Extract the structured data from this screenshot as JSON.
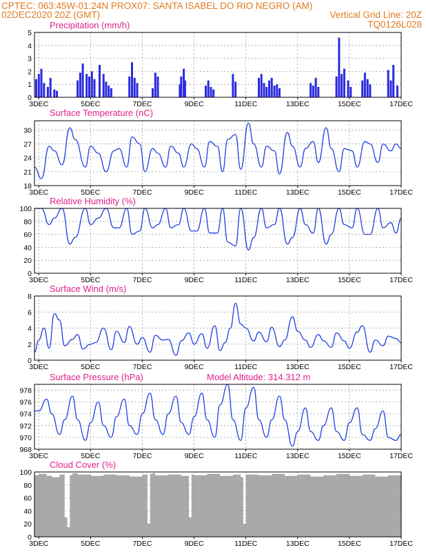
{
  "header": {
    "line1_left": "CPTEC:   063:45W-01:24N   PROX07: SANTA ISABEL DO RIO NEGRO (AM)",
    "line2_left": "02DEC2020 20Z (GMT)",
    "line2_right": "Vertical Grid Line: 20Z",
    "line3_right": "TQ0126L028",
    "model_altitude": "Model Altitude: 314.312 m"
  },
  "colors": {
    "header": "#e07a1f",
    "title": "#e0208a",
    "line": "#1f3fe0",
    "bars": "#2a2ae0",
    "cloud": "#a9a9a9",
    "wind": "#000000"
  },
  "chart_data": [
    {
      "id": "precip",
      "type": "bar",
      "title": "Precipitation (mm/h)",
      "x_tick_labels": [
        "3DEC",
        "5DEC",
        "7DEC",
        "9DEC",
        "11DEC",
        "13DEC",
        "15DEC",
        "17DEC"
      ],
      "x_range_days": [
        2.833,
        17.0
      ],
      "ylim": [
        0,
        5
      ],
      "y_ticks": [
        "0",
        "1",
        "2",
        "3",
        "4",
        "5"
      ],
      "x": [
        2.9,
        3.0,
        3.1,
        3.2,
        3.35,
        3.45,
        3.6,
        3.7,
        4.5,
        4.6,
        4.7,
        4.85,
        4.95,
        5.05,
        5.15,
        5.35,
        5.5,
        5.6,
        5.7,
        5.8,
        6.5,
        6.6,
        6.7,
        6.8,
        7.4,
        7.5,
        7.6,
        8.45,
        8.5,
        8.6,
        8.65,
        9.45,
        9.55,
        9.65,
        9.75,
        10.5,
        10.6,
        11.5,
        11.6,
        11.7,
        11.8,
        11.9,
        12.0,
        12.1,
        12.2,
        12.3,
        13.5,
        13.6,
        13.7,
        13.8,
        14.5,
        14.6,
        14.7,
        14.8,
        14.95,
        15.05,
        15.5,
        15.6,
        15.7,
        15.8,
        16.5,
        16.6,
        16.7,
        16.85
      ],
      "values": [
        1.4,
        1.8,
        2.2,
        1.1,
        0.8,
        1.5,
        0.6,
        0.5,
        1.3,
        1.9,
        2.6,
        1.8,
        1.6,
        2.0,
        1.4,
        2.5,
        1.8,
        1.2,
        0.9,
        0.7,
        1.6,
        2.7,
        1.5,
        1.1,
        0.7,
        1.9,
        1.6,
        1.0,
        1.6,
        2.2,
        1.3,
        0.9,
        1.3,
        0.8,
        0.6,
        1.8,
        1.2,
        1.5,
        1.8,
        1.1,
        0.8,
        1.3,
        1.5,
        0.9,
        1.0,
        0.7,
        1.1,
        0.9,
        1.5,
        0.8,
        1.6,
        4.6,
        1.8,
        2.2,
        1.3,
        0.8,
        1.3,
        1.9,
        1.4,
        1.0,
        2.1,
        1.3,
        2.5,
        0.9
      ]
    },
    {
      "id": "temp",
      "type": "line",
      "title": "Surface Temperature (nC)",
      "x_tick_labels": [
        "3DEC",
        "5DEC",
        "7DEC",
        "9DEC",
        "11DEC",
        "13DEC",
        "15DEC",
        "17DEC"
      ],
      "x_range_days": [
        2.833,
        17.0
      ],
      "ylim": [
        18,
        32
      ],
      "y_ticks": [
        "18",
        "21",
        "24",
        "27",
        "30"
      ],
      "x": [
        2.83,
        3.1,
        3.4,
        3.6,
        3.9,
        4.2,
        4.4,
        4.8,
        5.0,
        5.3,
        5.6,
        5.9,
        6.1,
        6.4,
        6.6,
        6.9,
        7.1,
        7.4,
        7.6,
        7.9,
        8.1,
        8.4,
        8.6,
        8.9,
        9.1,
        9.4,
        9.6,
        9.9,
        10.1,
        10.3,
        10.6,
        10.8,
        11.1,
        11.3,
        11.6,
        11.8,
        12.1,
        12.3,
        12.6,
        12.8,
        13.1,
        13.3,
        13.6,
        13.8,
        14.1,
        14.3,
        14.6,
        14.8,
        15.1,
        15.3,
        15.6,
        15.8,
        16.1,
        16.3,
        16.6,
        16.8,
        17.0
      ],
      "values": [
        22,
        19.5,
        26.5,
        25.5,
        22.5,
        30.5,
        28,
        22,
        26.5,
        25,
        21,
        25.5,
        26,
        22,
        28.5,
        27,
        21,
        26,
        25,
        22,
        26.5,
        25,
        22,
        27,
        26,
        22,
        27.5,
        26.5,
        21,
        28,
        29,
        21.5,
        31.5,
        27,
        22,
        26.5,
        25.5,
        20.5,
        29.5,
        26.5,
        22,
        26,
        27.5,
        23,
        30.5,
        26,
        21,
        26,
        25.5,
        22,
        27.5,
        27,
        23,
        27,
        25.5,
        27,
        26
      ]
    },
    {
      "id": "rh",
      "type": "line",
      "title": "Relative Humidity (%)",
      "x_tick_labels": [
        "3DEC",
        "5DEC",
        "7DEC",
        "9DEC",
        "11DEC",
        "13DEC",
        "15DEC",
        "17DEC"
      ],
      "x_range_days": [
        2.833,
        17.0
      ],
      "ylim": [
        0,
        100
      ],
      "y_ticks": [
        "0",
        "20",
        "40",
        "60",
        "80",
        "100"
      ],
      "x": [
        2.83,
        3.1,
        3.4,
        3.6,
        3.9,
        4.2,
        4.4,
        4.8,
        5.0,
        5.3,
        5.6,
        5.9,
        6.1,
        6.4,
        6.6,
        6.9,
        7.1,
        7.4,
        7.6,
        7.9,
        8.1,
        8.4,
        8.6,
        8.9,
        9.1,
        9.4,
        9.6,
        9.9,
        10.1,
        10.3,
        10.6,
        10.8,
        11.1,
        11.3,
        11.6,
        11.8,
        12.1,
        12.3,
        12.6,
        12.8,
        13.1,
        13.3,
        13.6,
        13.8,
        14.1,
        14.3,
        14.6,
        14.8,
        15.1,
        15.3,
        15.6,
        15.8,
        16.1,
        16.3,
        16.6,
        16.8,
        17.0
      ],
      "values": [
        100,
        100,
        75,
        85,
        100,
        45,
        55,
        100,
        75,
        85,
        100,
        70,
        70,
        100,
        60,
        65,
        100,
        70,
        75,
        100,
        70,
        75,
        100,
        65,
        65,
        100,
        62,
        62,
        100,
        48,
        42,
        100,
        36,
        55,
        100,
        70,
        75,
        100,
        45,
        55,
        100,
        75,
        62,
        100,
        45,
        60,
        100,
        75,
        70,
        100,
        60,
        60,
        100,
        70,
        78,
        62,
        85
      ]
    },
    {
      "id": "wind",
      "type": "line",
      "title": "Surface Wind (m/s)",
      "x_tick_labels": [
        "3DEC",
        "5DEC",
        "7DEC",
        "9DEC",
        "11DEC",
        "13DEC",
        "15DEC",
        "17DEC"
      ],
      "x_range_days": [
        2.833,
        17.0
      ],
      "ylim": [
        0,
        8
      ],
      "y_ticks": [
        "0",
        "2",
        "4",
        "6",
        "8"
      ],
      "x": [
        2.83,
        3.0,
        3.2,
        3.4,
        3.6,
        3.8,
        4.0,
        4.3,
        4.5,
        4.7,
        5.0,
        5.2,
        5.5,
        5.8,
        6.0,
        6.3,
        6.5,
        6.8,
        7.0,
        7.3,
        7.5,
        7.8,
        8.0,
        8.3,
        8.5,
        8.8,
        9.0,
        9.3,
        9.5,
        9.8,
        10.0,
        10.2,
        10.4,
        10.6,
        10.8,
        11.0,
        11.3,
        11.5,
        11.8,
        12.0,
        12.3,
        12.5,
        12.8,
        13.0,
        13.3,
        13.5,
        13.8,
        14.0,
        14.3,
        14.5,
        14.8,
        15.0,
        15.3,
        15.5,
        15.8,
        16.0,
        16.3,
        16.5,
        16.8,
        17.0
      ],
      "values": [
        1.0,
        2.5,
        4.0,
        1.5,
        5.8,
        5.0,
        1.8,
        2.6,
        3.2,
        1.4,
        2.0,
        2.2,
        4.0,
        1.3,
        3.6,
        2.2,
        4.2,
        2.0,
        2.8,
        1.0,
        3.1,
        2.5,
        2.6,
        0.6,
        2.4,
        3.4,
        2.0,
        3.3,
        1.5,
        4.3,
        1.2,
        2.2,
        4.0,
        7.1,
        4.5,
        4.0,
        2.4,
        3.5,
        2.3,
        4.1,
        1.7,
        2.5,
        5.4,
        3.6,
        2.5,
        1.6,
        3.2,
        2.4,
        1.6,
        3.4,
        2.4,
        1.5,
        3.5,
        4.3,
        1.0,
        2.5,
        1.8,
        3.0,
        2.7,
        2.2
      ]
    },
    {
      "id": "pressure",
      "type": "line",
      "title": "Surface Pressure (hPa)",
      "x_tick_labels": [
        "3DEC",
        "5DEC",
        "7DEC",
        "9DEC",
        "11DEC",
        "13DEC",
        "15DEC",
        "17DEC"
      ],
      "x_range_days": [
        2.833,
        17.0
      ],
      "ylim": [
        968,
        979
      ],
      "y_ticks": [
        "968",
        "970",
        "972",
        "974",
        "976",
        "978"
      ],
      "x": [
        2.83,
        3.0,
        3.3,
        3.5,
        3.8,
        4.0,
        4.3,
        4.5,
        4.8,
        5.0,
        5.3,
        5.5,
        5.8,
        6.0,
        6.3,
        6.5,
        6.8,
        7.0,
        7.3,
        7.5,
        7.8,
        8.0,
        8.3,
        8.5,
        8.8,
        9.0,
        9.3,
        9.5,
        9.8,
        10.0,
        10.3,
        10.5,
        10.8,
        11.0,
        11.3,
        11.5,
        11.8,
        12.0,
        12.3,
        12.5,
        12.8,
        13.0,
        13.3,
        13.5,
        13.8,
        14.0,
        14.3,
        14.5,
        14.8,
        15.0,
        15.3,
        15.5,
        15.8,
        16.0,
        16.3,
        16.5,
        16.8,
        17.0
      ],
      "values": [
        974.5,
        974.5,
        976.5,
        974.0,
        970.5,
        973.0,
        977.0,
        973.0,
        969.5,
        972.5,
        976.0,
        972.0,
        970.0,
        973.5,
        976.5,
        972.0,
        970.5,
        974.0,
        977.5,
        973.0,
        970.5,
        974.0,
        977.0,
        972.5,
        970.5,
        973.5,
        977.5,
        973.0,
        970.0,
        975.5,
        979.0,
        973.0,
        969.5,
        975.0,
        978.5,
        973.0,
        970.0,
        973.0,
        977.0,
        973.0,
        968.5,
        971.0,
        975.0,
        971.0,
        969.5,
        972.0,
        975.0,
        971.0,
        969.5,
        972.5,
        975.0,
        970.5,
        969.5,
        971.5,
        974.5,
        970.0,
        969.5,
        970.5
      ]
    },
    {
      "id": "cloud",
      "type": "area",
      "title": "Cloud Cover (%)",
      "x_tick_labels": [
        "3DEC",
        "5DEC",
        "7DEC",
        "9DEC",
        "11DEC",
        "13DEC",
        "15DEC",
        "17DEC"
      ],
      "x_range_days": [
        2.833,
        17.0
      ],
      "ylim": [
        0,
        100
      ],
      "y_ticks": [
        "0",
        "20",
        "40",
        "60",
        "80",
        "100"
      ],
      "x": [
        2.83,
        3.0,
        3.3,
        3.5,
        3.8,
        4.0,
        4.1,
        4.2,
        4.3,
        4.5,
        5.0,
        5.5,
        6.0,
        6.5,
        7.0,
        7.2,
        7.3,
        7.4,
        7.5,
        8.0,
        8.5,
        8.8,
        8.9,
        9.0,
        9.5,
        10.0,
        10.5,
        10.8,
        10.9,
        11.0,
        11.5,
        12.0,
        12.5,
        13.0,
        13.5,
        14.0,
        14.5,
        15.0,
        15.5,
        16.0,
        16.5,
        17.0
      ],
      "values": [
        95,
        97,
        94,
        92,
        96,
        30,
        15,
        95,
        98,
        96,
        94,
        96,
        95,
        93,
        96,
        20,
        97,
        98,
        95,
        96,
        94,
        30,
        96,
        95,
        97,
        94,
        96,
        92,
        20,
        96,
        95,
        97,
        94,
        96,
        93,
        95,
        97,
        94,
        96,
        93,
        95,
        94
      ]
    }
  ]
}
